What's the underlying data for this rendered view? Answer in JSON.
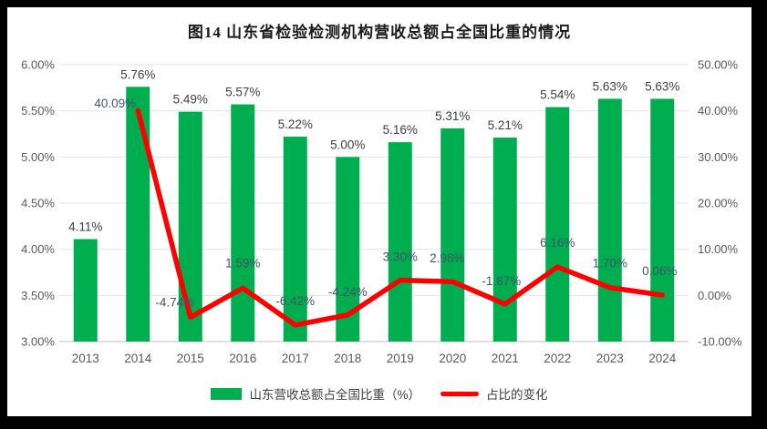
{
  "title": "图14  山东省检验检测机构营收总额占全国比重的情况",
  "legend": [
    {
      "label": "山东营收总额占全国比重（%）",
      "color": "#00AE50",
      "type": "bar"
    },
    {
      "label": "占比的变化",
      "color": "#FE0000",
      "type": "line"
    }
  ],
  "colors": {
    "bar": "#00AE50",
    "line": "#FE0000",
    "grid": "#E4E4E4",
    "axis_line": "#C0C0C0",
    "tick_text": "#595959",
    "bar_label": "#3F3F3F",
    "line_label": "#44546A",
    "frame_border": "#000000",
    "background": "#FFFFFF"
  },
  "chart_data": {
    "type": "bar",
    "subtype": "combo-bar-line",
    "title": "图14  山东省检验检测机构营收总额占全国比重的情况",
    "categories": [
      "2013",
      "2014",
      "2015",
      "2016",
      "2017",
      "2018",
      "2019",
      "2020",
      "2021",
      "2022",
      "2023",
      "2024"
    ],
    "series": [
      {
        "name": "山东营收总额占全国比重（%）",
        "type": "bar",
        "axis": "left",
        "color": "#00AE50",
        "values": [
          4.11,
          5.76,
          5.49,
          5.57,
          5.22,
          5.0,
          5.16,
          5.31,
          5.21,
          5.54,
          5.63,
          5.63
        ],
        "labels": [
          "4.11%",
          "5.76%",
          "5.49%",
          "5.57%",
          "5.22%",
          "5.00%",
          "5.16%",
          "5.31%",
          "5.21%",
          "5.54%",
          "5.63%",
          "5.63%"
        ]
      },
      {
        "name": "占比的变化",
        "type": "line",
        "axis": "right",
        "color": "#FE0000",
        "values": [
          null,
          40.09,
          -4.74,
          1.59,
          -6.42,
          -4.24,
          3.3,
          2.98,
          -1.87,
          6.16,
          1.7,
          0.06
        ],
        "labels": [
          null,
          "40.09%",
          "-4.74%",
          "1.59%",
          "-6.42%",
          "-4.24%",
          "3.30%",
          "2.98%",
          "-1.87%",
          "6.16%",
          "1.70%",
          "0.06%"
        ],
        "label_dx": [
          null,
          -25,
          -17,
          0,
          0,
          0,
          0,
          -6,
          -4,
          0,
          0,
          -3
        ],
        "label_dy": [
          null,
          -3,
          -12,
          -23,
          -22,
          -21,
          -21,
          -21,
          -21,
          -22,
          -22,
          -22
        ]
      }
    ],
    "left_axis": {
      "min": 3,
      "max": 6,
      "ticks": [
        "6.00%",
        "5.50%",
        "5.00%",
        "4.50%",
        "4.00%",
        "3.50%",
        "3.00%"
      ]
    },
    "right_axis": {
      "min": -10,
      "max": 50,
      "ticks": [
        "50.00%",
        "40.00%",
        "30.00%",
        "20.00%",
        "10.00%",
        "0.00%",
        "-10.00%"
      ]
    },
    "grid": true,
    "legend_position": "bottom",
    "xlabel": "",
    "ylabel": ""
  }
}
